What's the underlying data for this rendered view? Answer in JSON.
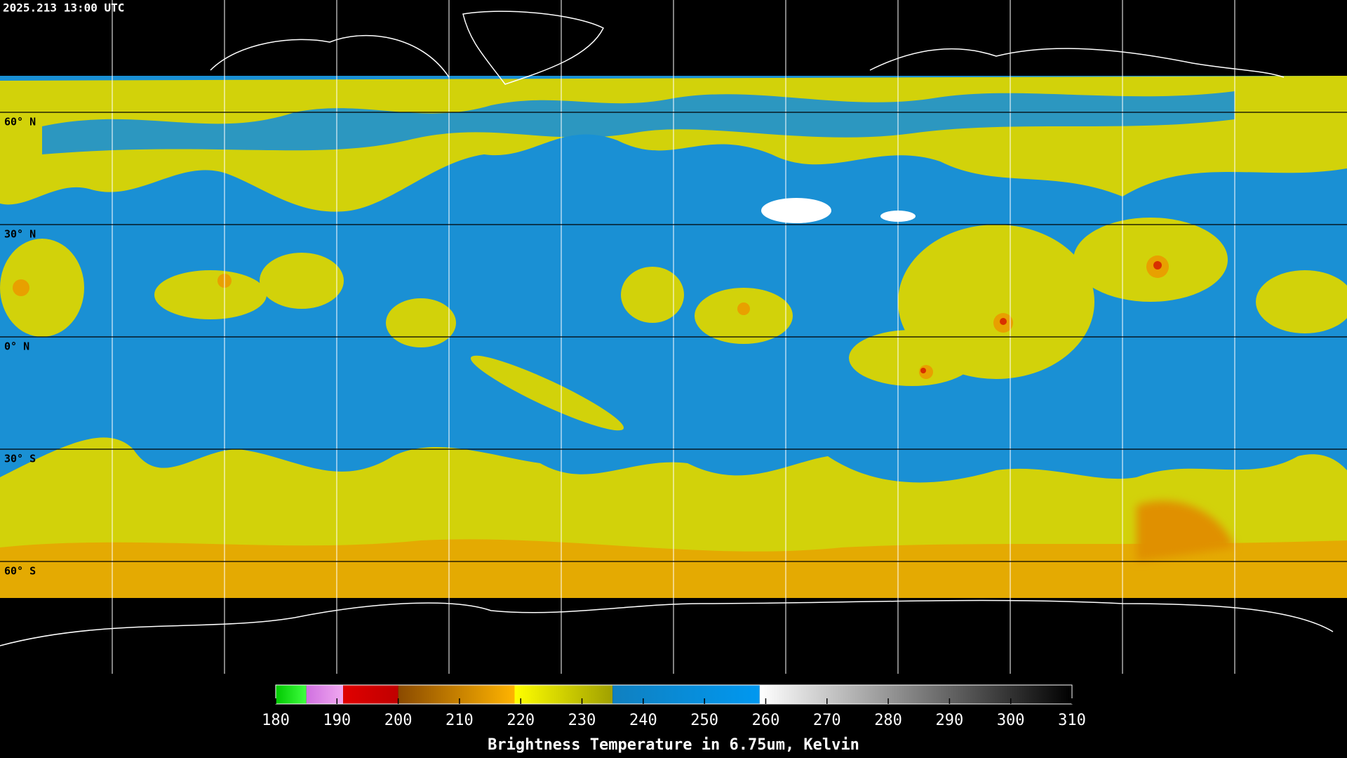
{
  "header": {
    "timestamp": "2025.213 13:00 UTC"
  },
  "map": {
    "latitude_labels": [
      {
        "value": 60,
        "label": "60° N"
      },
      {
        "value": 30,
        "label": "30° N"
      },
      {
        "value": 0,
        "label": "0° N"
      },
      {
        "value": -30,
        "label": "30° S"
      },
      {
        "value": -60,
        "label": "60° S"
      }
    ]
  },
  "colorbar": {
    "title": "Brightness Temperature in 6.75um, Kelvin",
    "range": [
      180,
      310
    ],
    "ticks": [
      180,
      190,
      200,
      210,
      220,
      230,
      240,
      250,
      260,
      270,
      280,
      290,
      300,
      310
    ],
    "segments": [
      {
        "from": 180,
        "to": 185,
        "colors": [
          "#00c800",
          "#40ff40"
        ]
      },
      {
        "from": 185,
        "to": 191,
        "colors": [
          "#d070e0",
          "#f0a8f0"
        ]
      },
      {
        "from": 191,
        "to": 200,
        "colors": [
          "#e00000",
          "#c00000"
        ]
      },
      {
        "from": 200,
        "to": 219,
        "colors": [
          "#8a4a00",
          "#ffb400"
        ]
      },
      {
        "from": 219,
        "to": 235,
        "colors": [
          "#ffff00",
          "#a0a000"
        ]
      },
      {
        "from": 235,
        "to": 259,
        "colors": [
          "#1080c0",
          "#0098f0"
        ]
      },
      {
        "from": 259,
        "to": 310,
        "colors": [
          "#ffffff",
          "#000000"
        ]
      }
    ]
  }
}
